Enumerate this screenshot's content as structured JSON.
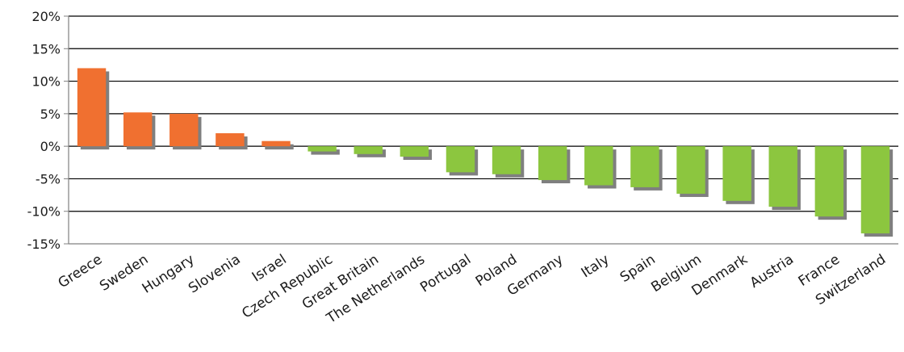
{
  "chart_data": {
    "type": "bar",
    "categories": [
      "Greece",
      "Sweden",
      "Hungary",
      "Slovenia",
      "Israel",
      "Czech Republic",
      "Great Britain",
      "The Netherlands",
      "Portugal",
      "Poland",
      "Germany",
      "Italy",
      "Spain",
      "Belgium",
      "Denmark",
      "Austria",
      "France",
      "Switzerland"
    ],
    "values": [
      12.0,
      5.2,
      5.0,
      2.0,
      0.8,
      -0.8,
      -1.2,
      -1.6,
      -4.0,
      -4.3,
      -5.2,
      -6.0,
      -6.3,
      -7.3,
      -8.4,
      -9.3,
      -10.8,
      -13.4
    ],
    "ylim": [
      -15,
      20
    ],
    "yticks": [
      20,
      15,
      10,
      5,
      0,
      -5,
      -10,
      -15
    ],
    "ytick_suffix": "%",
    "grid": true,
    "legend": "none",
    "colors": {
      "positive": "#f07030",
      "negative": "#8cc63f",
      "shadow": "#7f7f7f",
      "grid": "#000000",
      "axis": "#808080"
    }
  }
}
